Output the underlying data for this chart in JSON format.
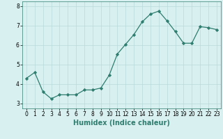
{
  "title": "",
  "xlabel": "Humidex (Indice chaleur)",
  "ylabel": "",
  "x_values": [
    0,
    1,
    2,
    3,
    4,
    5,
    6,
    7,
    8,
    9,
    10,
    11,
    12,
    13,
    14,
    15,
    16,
    17,
    18,
    19,
    20,
    21,
    22,
    23
  ],
  "y_values": [
    4.3,
    4.6,
    3.6,
    3.25,
    3.45,
    3.45,
    3.45,
    3.7,
    3.7,
    3.8,
    4.45,
    5.55,
    6.05,
    6.55,
    7.2,
    7.6,
    7.75,
    7.25,
    6.7,
    6.1,
    6.1,
    6.95,
    6.9,
    6.8
  ],
  "ylim": [
    2.75,
    8.25
  ],
  "xlim": [
    -0.5,
    23.5
  ],
  "yticks": [
    3,
    4,
    5,
    6,
    7,
    8
  ],
  "xticks": [
    0,
    1,
    2,
    3,
    4,
    5,
    6,
    7,
    8,
    9,
    10,
    11,
    12,
    13,
    14,
    15,
    16,
    17,
    18,
    19,
    20,
    21,
    22,
    23
  ],
  "line_color": "#2e7d6e",
  "marker": "D",
  "marker_size": 2.2,
  "bg_color": "#d9f0f0",
  "grid_color": "#b8dada",
  "tick_label_fontsize": 5.5,
  "xlabel_fontsize": 7.0,
  "line_width": 0.9
}
